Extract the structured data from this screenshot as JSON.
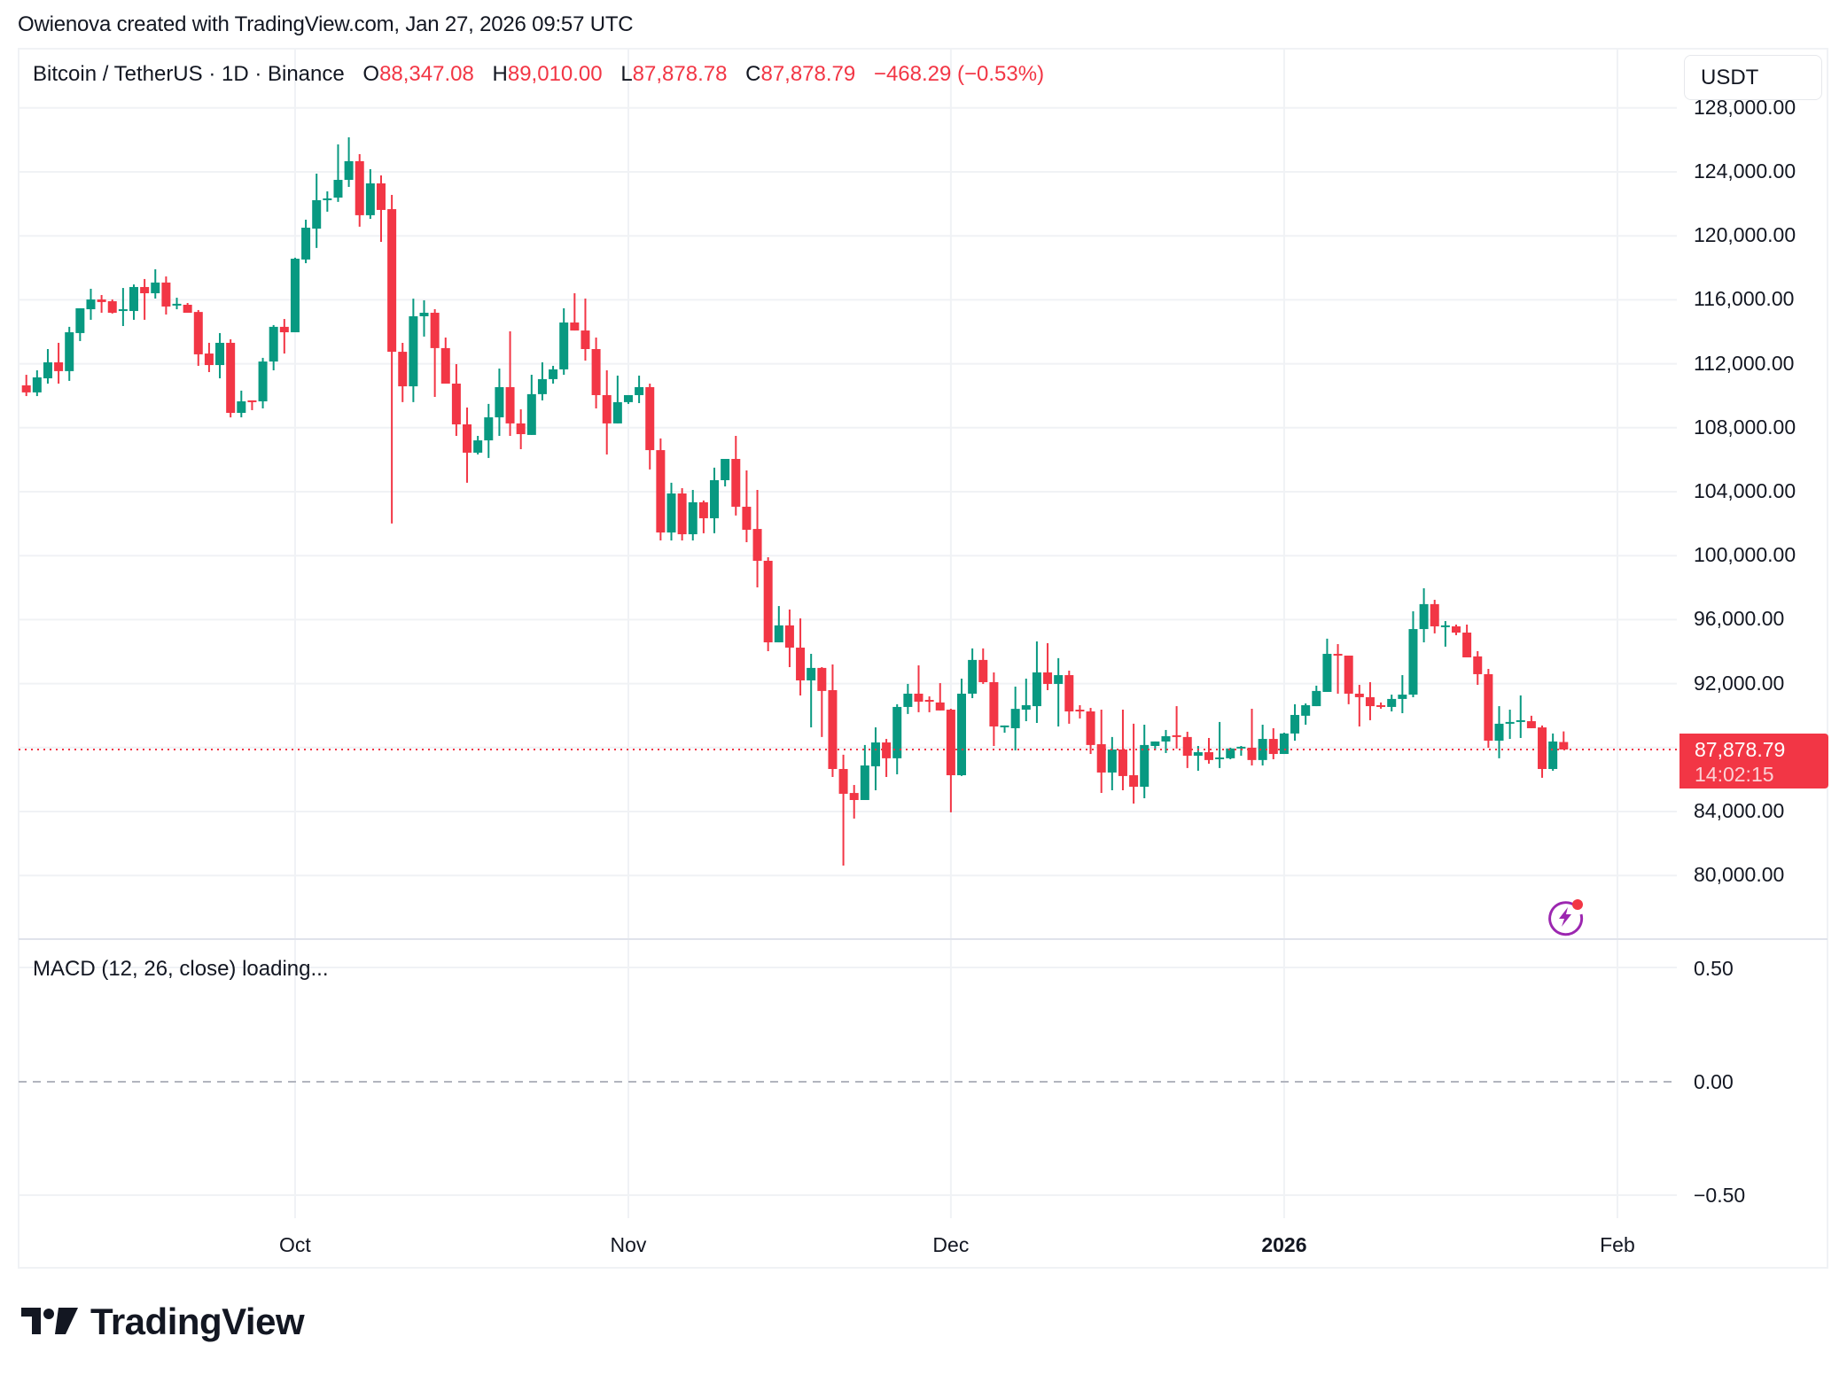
{
  "caption": "Owienova created with TradingView.com, Jan 27, 2026 09:57 UTC",
  "legend": {
    "symbol": "Bitcoin / TetherUS · 1D · Binance",
    "o_label": "O",
    "o_value": "88,347.08",
    "h_label": "H",
    "h_value": "89,010.00",
    "l_label": "L",
    "l_value": "87,878.78",
    "c_label": "C",
    "c_value": "87,878.79",
    "change": "−468.29 (−0.53%)"
  },
  "currency_button": "USDT",
  "price_tag": {
    "price": "87,878.79",
    "countdown": "14:02:15"
  },
  "macd": {
    "label": "MACD (12, 26, close) loading...",
    "ticks": [
      "0.50",
      "0.00",
      "−0.50"
    ]
  },
  "price_ticks": [
    "128,000.00",
    "124,000.00",
    "120,000.00",
    "116,000.00",
    "112,000.00",
    "108,000.00",
    "104,000.00",
    "100,000.00",
    "96,000.00",
    "92,000.00",
    "84,000.00",
    "80,000.00"
  ],
  "time_ticks": [
    {
      "label": "Oct",
      "bold": false
    },
    {
      "label": "Nov",
      "bold": false
    },
    {
      "label": "Dec",
      "bold": false
    },
    {
      "label": "2026",
      "bold": true
    },
    {
      "label": "Feb",
      "bold": false
    }
  ],
  "brand": "TradingView",
  "colors": {
    "up": "#089981",
    "down": "#f23645",
    "grid": "#f0f2f5",
    "text": "#131722",
    "bolt": "#9c27b0"
  },
  "chart_data": {
    "type": "candlestick",
    "title": "Bitcoin / TetherUS · 1D · Binance",
    "ylabel": "USDT",
    "ylim": [
      76000,
      129500
    ],
    "grid": true,
    "x_start": "2025-09-06",
    "x_end": "2026-01-27",
    "x_ticks": [
      "Oct",
      "Nov",
      "Dec",
      "2026",
      "Feb"
    ],
    "y_ticks": [
      80000,
      84000,
      92000,
      96000,
      100000,
      104000,
      108000,
      112000,
      116000,
      120000,
      124000,
      128000
    ],
    "last_price": 87878.79,
    "columns": [
      "open",
      "high",
      "low",
      "close"
    ],
    "ohlc": [
      [
        110650,
        111310,
        109980,
        110210
      ],
      [
        110210,
        111590,
        109980,
        111150
      ],
      [
        111090,
        112920,
        110760,
        112090
      ],
      [
        112090,
        113310,
        110760,
        111540
      ],
      [
        111540,
        114310,
        110930,
        113970
      ],
      [
        113920,
        115470,
        113420,
        115470
      ],
      [
        115410,
        116690,
        114750,
        116020
      ],
      [
        116020,
        116300,
        115190,
        115860
      ],
      [
        115910,
        116020,
        115140,
        115190
      ],
      [
        115360,
        116740,
        114360,
        115410
      ],
      [
        115300,
        116960,
        114750,
        116800
      ],
      [
        116800,
        117300,
        114750,
        116410
      ],
      [
        116410,
        117910,
        116080,
        117080
      ],
      [
        117080,
        117460,
        115080,
        115580
      ],
      [
        115690,
        116130,
        115410,
        115750
      ],
      [
        115690,
        115800,
        115190,
        115190
      ],
      [
        115240,
        115360,
        111870,
        112590
      ],
      [
        112640,
        113310,
        111480,
        111920
      ],
      [
        111920,
        113920,
        111090,
        113310
      ],
      [
        113310,
        113530,
        108650,
        108930
      ],
      [
        108930,
        110320,
        108650,
        109650
      ],
      [
        109710,
        109710,
        109100,
        109650
      ],
      [
        109650,
        112370,
        109210,
        112140
      ],
      [
        112140,
        114420,
        111590,
        114310
      ],
      [
        114310,
        114800,
        112640,
        113970
      ],
      [
        113970,
        118630,
        113970,
        118570
      ],
      [
        118520,
        121010,
        118290,
        120510
      ],
      [
        120450,
        123890,
        119240,
        122230
      ],
      [
        122280,
        122780,
        121510,
        122340
      ],
      [
        122390,
        125720,
        122120,
        123500
      ],
      [
        123500,
        126160,
        123060,
        124670
      ],
      [
        124670,
        125110,
        120570,
        121290
      ],
      [
        121290,
        124170,
        121060,
        123280
      ],
      [
        123280,
        123780,
        119620,
        121620
      ],
      [
        121670,
        122560,
        102010,
        112750
      ],
      [
        112750,
        113310,
        109600,
        110590
      ],
      [
        110590,
        116070,
        109600,
        114970
      ],
      [
        114970,
        115970,
        113700,
        115190
      ],
      [
        115190,
        115410,
        109930,
        112980
      ],
      [
        112980,
        113640,
        111980,
        110760
      ],
      [
        110760,
        111980,
        107490,
        108210
      ],
      [
        108210,
        109260,
        104560,
        106440
      ],
      [
        106440,
        107490,
        106330,
        107210
      ],
      [
        107210,
        109490,
        106110,
        108650
      ],
      [
        108650,
        111700,
        107490,
        110540
      ],
      [
        110540,
        114030,
        107490,
        108270
      ],
      [
        108270,
        109150,
        106660,
        107600
      ],
      [
        107550,
        111310,
        107550,
        110100
      ],
      [
        110100,
        112090,
        109710,
        111040
      ],
      [
        111040,
        111870,
        110760,
        111650
      ],
      [
        111650,
        115470,
        111310,
        114580
      ],
      [
        114580,
        116410,
        114080,
        114080
      ],
      [
        114080,
        116080,
        112200,
        112920
      ],
      [
        112920,
        113640,
        109210,
        110040
      ],
      [
        110040,
        111590,
        106330,
        108270
      ],
      [
        108270,
        111260,
        108270,
        109600
      ],
      [
        109600,
        110040,
        109490,
        110040
      ],
      [
        110040,
        111260,
        109540,
        110540
      ],
      [
        110540,
        110760,
        105390,
        106600
      ],
      [
        106600,
        107330,
        100950,
        101450
      ],
      [
        101450,
        104560,
        100950,
        103890
      ],
      [
        103890,
        104220,
        100950,
        101340
      ],
      [
        101340,
        104110,
        100950,
        103340
      ],
      [
        103340,
        103450,
        101400,
        102340
      ],
      [
        102340,
        105500,
        101400,
        104720
      ],
      [
        104720,
        106050,
        104330,
        106050
      ],
      [
        106050,
        107490,
        102510,
        103060
      ],
      [
        103060,
        105330,
        100840,
        101620
      ],
      [
        101670,
        104110,
        98020,
        99680
      ],
      [
        99680,
        99900,
        94030,
        94580
      ],
      [
        94580,
        96850,
        94580,
        95640
      ],
      [
        95640,
        96630,
        93030,
        94250
      ],
      [
        94250,
        96080,
        91260,
        92200
      ],
      [
        92200,
        93860,
        89260,
        92980
      ],
      [
        92980,
        93030,
        88660,
        91540
      ],
      [
        91590,
        93200,
        86160,
        86660
      ],
      [
        86660,
        87550,
        80620,
        85110
      ],
      [
        85160,
        85660,
        83560,
        84720
      ],
      [
        84720,
        88160,
        84720,
        86880
      ],
      [
        86830,
        89260,
        85330,
        88320
      ],
      [
        88320,
        88540,
        86160,
        87330
      ],
      [
        87330,
        90710,
        86330,
        90540
      ],
      [
        90540,
        91980,
        90100,
        91370
      ],
      [
        91370,
        93140,
        90210,
        90870
      ],
      [
        90980,
        91200,
        90210,
        90930
      ],
      [
        90820,
        92030,
        90320,
        90320
      ],
      [
        90370,
        90430,
        83950,
        86270
      ],
      [
        86270,
        92310,
        86220,
        91370
      ],
      [
        91370,
        94200,
        91090,
        93480
      ],
      [
        93480,
        94200,
        91980,
        92090
      ],
      [
        92090,
        92700,
        88100,
        89320
      ],
      [
        89380,
        89380,
        88930,
        89380
      ],
      [
        89210,
        91810,
        87820,
        90420
      ],
      [
        90370,
        92310,
        89650,
        90650
      ],
      [
        90590,
        94640,
        89540,
        92700
      ],
      [
        92700,
        94530,
        91590,
        91980
      ],
      [
        91980,
        93590,
        89320,
        92530
      ],
      [
        92530,
        92810,
        89490,
        90260
      ],
      [
        90370,
        90650,
        89820,
        90320
      ],
      [
        90260,
        90480,
        87600,
        88160
      ],
      [
        88210,
        90370,
        85160,
        86440
      ],
      [
        86440,
        88660,
        85330,
        87880
      ],
      [
        87880,
        90370,
        85330,
        86220
      ],
      [
        86270,
        89490,
        84500,
        85550
      ],
      [
        85550,
        89430,
        84830,
        88160
      ],
      [
        88100,
        88380,
        87830,
        88380
      ],
      [
        88380,
        89100,
        87660,
        88710
      ],
      [
        88770,
        90590,
        87940,
        88710
      ],
      [
        88660,
        88990,
        86720,
        87490
      ],
      [
        87490,
        88100,
        86550,
        87710
      ],
      [
        87710,
        88600,
        86990,
        87220
      ],
      [
        87270,
        89600,
        86720,
        87380
      ],
      [
        87330,
        87990,
        87270,
        87940
      ],
      [
        87990,
        88100,
        87490,
        88050
      ],
      [
        87990,
        90430,
        86880,
        87220
      ],
      [
        87220,
        89430,
        86880,
        88540
      ],
      [
        88540,
        89210,
        87270,
        87600
      ],
      [
        87600,
        88930,
        87600,
        88880
      ],
      [
        88880,
        90710,
        88430,
        90040
      ],
      [
        89990,
        90760,
        89430,
        90650
      ],
      [
        90590,
        91870,
        90590,
        91540
      ],
      [
        91480,
        94810,
        91480,
        93860
      ],
      [
        93860,
        94470,
        91370,
        93750
      ],
      [
        93750,
        93750,
        90710,
        91370
      ],
      [
        91370,
        91920,
        89320,
        91150
      ],
      [
        91150,
        92090,
        89710,
        90590
      ],
      [
        90650,
        90820,
        90430,
        90540
      ],
      [
        90540,
        91310,
        90260,
        91040
      ],
      [
        91040,
        92530,
        90150,
        91310
      ],
      [
        91310,
        96520,
        91150,
        95410
      ],
      [
        95410,
        97960,
        94580,
        96970
      ],
      [
        96970,
        97240,
        95140,
        95580
      ],
      [
        95640,
        95910,
        94310,
        95640
      ],
      [
        95580,
        95690,
        95030,
        95190
      ],
      [
        95190,
        95690,
        93640,
        93640
      ],
      [
        93700,
        94030,
        91920,
        92590
      ],
      [
        92590,
        92920,
        87990,
        88430
      ],
      [
        88430,
        90590,
        87330,
        89490
      ],
      [
        89600,
        90370,
        88540,
        89600
      ],
      [
        89710,
        91260,
        88600,
        89710
      ],
      [
        89650,
        89990,
        89210,
        89210
      ],
      [
        89260,
        89380,
        86110,
        86660
      ],
      [
        86660,
        88880,
        86550,
        88380
      ],
      [
        88347.08,
        89010,
        87878.78,
        87878.79
      ]
    ]
  }
}
